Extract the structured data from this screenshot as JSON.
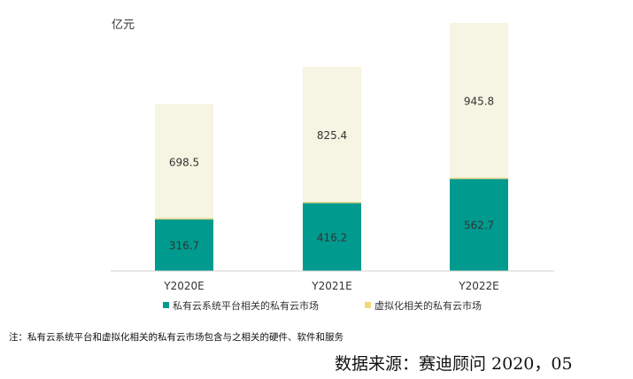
{
  "chart_data": {
    "type": "bar",
    "stacked": true,
    "unit_label": "亿元",
    "categories": [
      "Y2020E",
      "Y2021E",
      "Y2022E"
    ],
    "series": [
      {
        "name": "私有云系统平台相关的私有云市场",
        "values": [
          316.7,
          416.2,
          562.7
        ],
        "color": "#009a8e",
        "labels": [
          "316.7",
          "416.2",
          "562.7"
        ]
      },
      {
        "name": "虚拟化相关的私有云市场",
        "values": [
          698.5,
          825.4,
          945.8
        ],
        "color": "#f6f4e2",
        "legend_color": "#f1d97a",
        "labels": [
          "698.5",
          "825.4",
          "945.8"
        ]
      }
    ],
    "ylim": [
      0,
      1540
    ],
    "grid": false,
    "legend_position": "bottom",
    "separator_color": "#e3d58a"
  },
  "footnote": "注：私有云系统平台和虚拟化相关的私有云市场包含与之相关的硬件、软件和服务",
  "source": "数据来源：赛迪顾问  2020，05"
}
